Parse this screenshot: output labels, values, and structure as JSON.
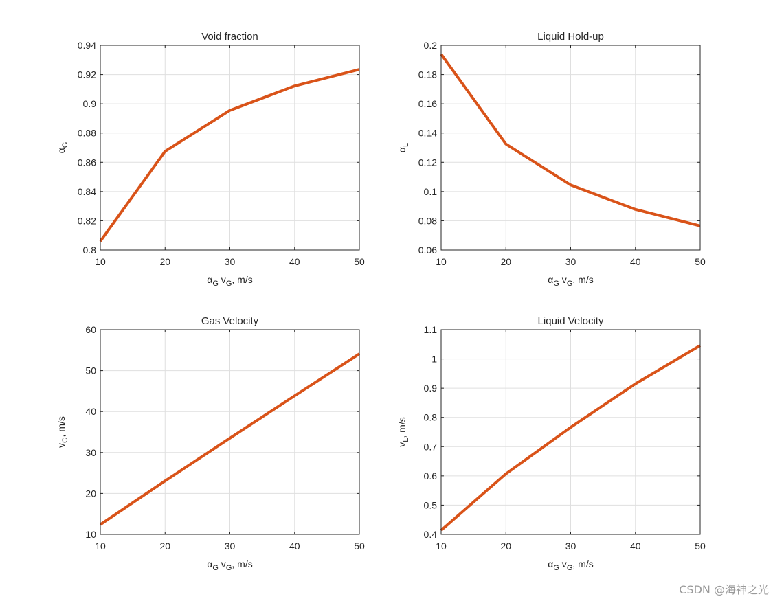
{
  "chart_data": [
    {
      "type": "line",
      "title": "Void fraction",
      "x": [
        10,
        20,
        30,
        40,
        50
      ],
      "y": [
        0.806,
        0.8675,
        0.8955,
        0.9122,
        0.9235
      ],
      "xlim": [
        10,
        50
      ],
      "ylim": [
        0.8,
        0.94
      ],
      "xticks": [
        10,
        20,
        30,
        40,
        50
      ],
      "yticks": [
        0.8,
        0.82,
        0.84,
        0.86,
        0.88,
        0.9,
        0.92,
        0.94
      ],
      "xlabel": {
        "base": "α",
        "sub": "G",
        "mid": " v",
        "sub2": "G",
        "tail": ", m/s"
      },
      "ylabel": {
        "base": "α",
        "sub": "G",
        "tail": ""
      },
      "grid": true,
      "color": "#D95319"
    },
    {
      "type": "line",
      "title": "Liquid Hold-up",
      "x": [
        10,
        20,
        30,
        40,
        50
      ],
      "y": [
        0.194,
        0.1325,
        0.1045,
        0.0878,
        0.0765
      ],
      "xlim": [
        10,
        50
      ],
      "ylim": [
        0.06,
        0.2
      ],
      "xticks": [
        10,
        20,
        30,
        40,
        50
      ],
      "yticks": [
        0.06,
        0.08,
        0.1,
        0.12,
        0.14,
        0.16,
        0.18,
        0.2
      ],
      "xlabel": {
        "base": "α",
        "sub": "G",
        "mid": " v",
        "sub2": "G",
        "tail": ", m/s"
      },
      "ylabel": {
        "base": "α",
        "sub": "L",
        "tail": ""
      },
      "grid": true,
      "color": "#D95319"
    },
    {
      "type": "line",
      "title": "Gas Velocity",
      "x": [
        10,
        20,
        30,
        40,
        50
      ],
      "y": [
        12.4,
        23.05,
        33.5,
        43.85,
        54.1
      ],
      "xlim": [
        10,
        50
      ],
      "ylim": [
        10,
        60
      ],
      "xticks": [
        10,
        20,
        30,
        40,
        50
      ],
      "yticks": [
        10,
        20,
        30,
        40,
        50,
        60
      ],
      "xlabel": {
        "base": "α",
        "sub": "G",
        "mid": " v",
        "sub2": "G",
        "tail": ", m/s"
      },
      "ylabel": {
        "base": "v",
        "sub": "G",
        "tail": ", m/s"
      },
      "grid": true,
      "color": "#D95319"
    },
    {
      "type": "line",
      "title": "Liquid Velocity",
      "x": [
        10,
        20,
        30,
        40,
        50
      ],
      "y": [
        0.414,
        0.607,
        0.766,
        0.915,
        1.046
      ],
      "xlim": [
        10,
        50
      ],
      "ylim": [
        0.4,
        1.1
      ],
      "xticks": [
        10,
        20,
        30,
        40,
        50
      ],
      "yticks": [
        0.4,
        0.5,
        0.6,
        0.7,
        0.8,
        0.9,
        1,
        1.1
      ],
      "xlabel": {
        "base": "α",
        "sub": "G",
        "mid": " v",
        "sub2": "G",
        "tail": ", m/s"
      },
      "ylabel": {
        "base": "v",
        "sub": "L",
        "tail": ", m/s"
      },
      "grid": true,
      "color": "#D95319"
    }
  ],
  "watermark": "CSDN @海神之光"
}
